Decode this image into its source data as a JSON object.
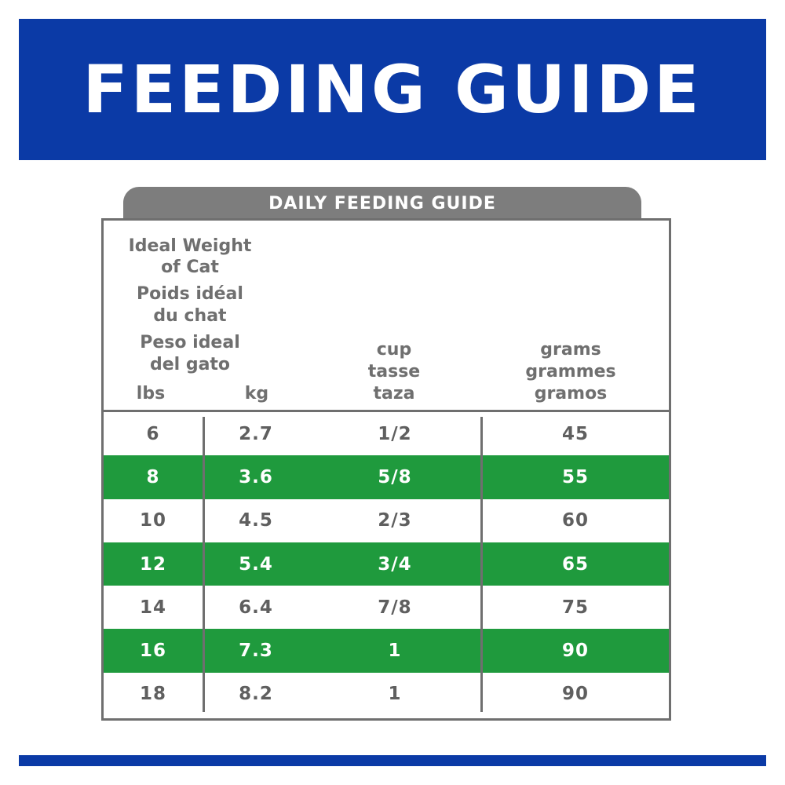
{
  "banner": {
    "title": "FEEDING GUIDE",
    "color": "#0b3aa6"
  },
  "table_tab": {
    "label": "DAILY FEEDING GUIDE"
  },
  "headers": {
    "weight_lines": [
      "Ideal Weight",
      "of Cat",
      "Poids idéal",
      "du chat",
      "Peso ideal",
      "del gato"
    ],
    "lbs": "lbs",
    "kg": "kg",
    "cup_lines": [
      "cup",
      "tasse",
      "taza"
    ],
    "grams_lines": [
      "grams",
      "grammes",
      "gramos"
    ]
  },
  "rows": [
    {
      "lbs": "6",
      "kg": "2.7",
      "cup": "1/2",
      "grams": "45"
    },
    {
      "lbs": "8",
      "kg": "3.6",
      "cup": "5/8",
      "grams": "55"
    },
    {
      "lbs": "10",
      "kg": "4.5",
      "cup": "2/3",
      "grams": "60"
    },
    {
      "lbs": "12",
      "kg": "5.4",
      "cup": "3/4",
      "grams": "65"
    },
    {
      "lbs": "14",
      "kg": "6.4",
      "cup": "7/8",
      "grams": "75"
    },
    {
      "lbs": "16",
      "kg": "7.3",
      "cup": "1",
      "grams": "90"
    },
    {
      "lbs": "18",
      "kg": "8.2",
      "cup": "1",
      "grams": "90"
    }
  ],
  "colors": {
    "stripe_green": "#1f9a3d",
    "text_gray": "#6f6f6f"
  }
}
